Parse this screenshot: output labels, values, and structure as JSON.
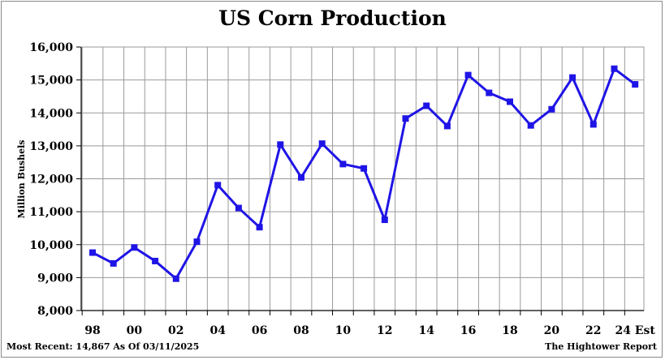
{
  "chart_data": {
    "type": "line",
    "title": "US Corn Production",
    "ylabel": "Million Bushels",
    "xlabel": "",
    "ylim": [
      8000,
      16000
    ],
    "yticks": [
      8000,
      9000,
      10000,
      11000,
      12000,
      13000,
      14000,
      15000,
      16000
    ],
    "ytick_labels": [
      "8,000",
      "9,000",
      "10,000",
      "11,000",
      "12,000",
      "13,000",
      "14,000",
      "15,000",
      "16,000"
    ],
    "grid": true,
    "x_years": [
      1998,
      1999,
      2000,
      2001,
      2002,
      2003,
      2004,
      2005,
      2006,
      2007,
      2008,
      2009,
      2010,
      2011,
      2012,
      2013,
      2014,
      2015,
      2016,
      2017,
      2018,
      2019,
      2020,
      2021,
      2022,
      2023,
      2024
    ],
    "xtick_labels": [
      {
        "year": 1998,
        "label": "98"
      },
      {
        "year": 2000,
        "label": "00"
      },
      {
        "year": 2002,
        "label": "02"
      },
      {
        "year": 2004,
        "label": "04"
      },
      {
        "year": 2006,
        "label": "06"
      },
      {
        "year": 2008,
        "label": "08"
      },
      {
        "year": 2010,
        "label": "10"
      },
      {
        "year": 2012,
        "label": "12"
      },
      {
        "year": 2014,
        "label": "14"
      },
      {
        "year": 2016,
        "label": "16"
      },
      {
        "year": 2018,
        "label": "18"
      },
      {
        "year": 2020,
        "label": "20"
      },
      {
        "year": 2022,
        "label": "22"
      },
      {
        "year": 2024,
        "label": "24 Est"
      }
    ],
    "series": [
      {
        "color": "#1f14e6",
        "values": [
          9759,
          9431,
          9915,
          9503,
          8967,
          10089,
          11807,
          11112,
          10531,
          13038,
          12043,
          13067,
          12447,
          12314,
          10755,
          13829,
          14216,
          13602,
          15148,
          14609,
          14340,
          13620,
          14111,
          15074,
          13651,
          15341,
          14867
        ]
      }
    ]
  },
  "footer": {
    "most_recent": "Most Recent: 14,867 As Of 03/11/2025",
    "source": "The Hightower Report"
  }
}
